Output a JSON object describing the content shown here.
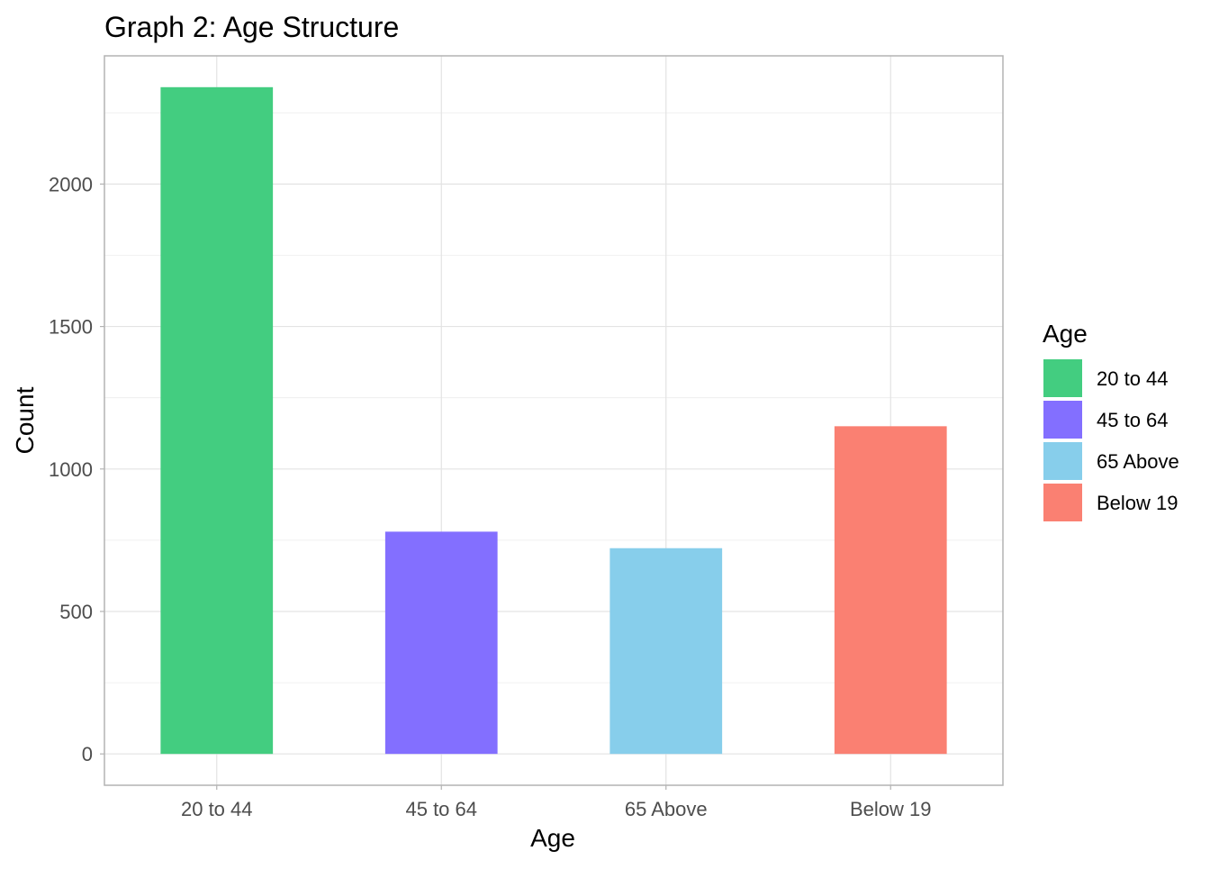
{
  "chart_data": {
    "type": "bar",
    "title": "Graph 2: Age Structure",
    "xlabel": "Age",
    "ylabel": "Count",
    "categories": [
      "20 to 44",
      "45 to 64",
      "65 Above",
      "Below 19"
    ],
    "values": [
      2340,
      780,
      722,
      1150
    ],
    "colors": [
      "#43CD80",
      "#836FFF",
      "#87CEEB",
      "#FA8072"
    ],
    "ylim": [
      -110,
      2450
    ],
    "yticks": [
      0,
      500,
      1000,
      1500,
      2000
    ],
    "ytick_labels": [
      "0",
      "500",
      "1000",
      "1500",
      "2000"
    ],
    "grid": true,
    "legend": {
      "title": "Age",
      "position": "right",
      "entries": [
        "20 to 44",
        "45 to 64",
        "65 Above",
        "Below 19"
      ]
    }
  }
}
